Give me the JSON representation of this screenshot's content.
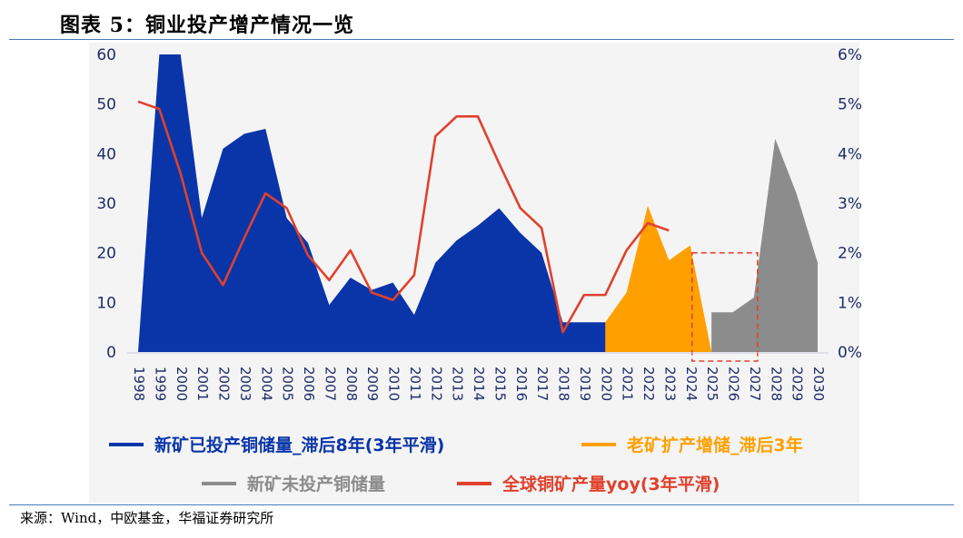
{
  "figure_title": "图表 5：铜业投产增产情况一览",
  "source_note": "来源：Wind，中欧基金，华福证券研究所",
  "colors": {
    "new_mine_invested": "#0a35a8",
    "old_mine_expansion": "#ffa000",
    "new_mine_not_invested": "#8c8c8c",
    "global_yoy": "#e0412d",
    "axis_text": "#1f2c69"
  },
  "chart_data": {
    "type": "area",
    "categories": [
      "1998",
      "1999",
      "2000",
      "2001",
      "2002",
      "2003",
      "2004",
      "2005",
      "2006",
      "2007",
      "2008",
      "2009",
      "2010",
      "2011",
      "2012",
      "2013",
      "2014",
      "2015",
      "2016",
      "2017",
      "2018",
      "2019",
      "2020",
      "2021",
      "2022",
      "2023",
      "2024",
      "2025",
      "2026",
      "2027",
      "2028",
      "2029",
      "2030"
    ],
    "y_left": {
      "ticks": [
        "0",
        "10",
        "20",
        "30",
        "40",
        "50",
        "60"
      ],
      "ylim": [
        0,
        60
      ]
    },
    "y_right": {
      "ticks": [
        "0%",
        "1%",
        "2%",
        "3%",
        "4%",
        "5%",
        "6%"
      ],
      "ylim": [
        0,
        6
      ]
    },
    "series": [
      {
        "name": "新矿已投产铜储量_滞后8年(3年平滑)",
        "kind": "area",
        "axis": "left",
        "values": [
          0,
          60,
          60,
          27,
          41,
          44,
          45,
          27,
          22,
          9.5,
          15,
          12.5,
          14,
          7.5,
          18,
          22.5,
          25.5,
          29,
          24,
          20,
          6,
          6,
          6,
          6,
          6,
          6,
          0,
          null,
          null,
          null,
          null,
          null,
          null
        ]
      },
      {
        "name": "老矿扩产增储_滞后3年",
        "kind": "area",
        "axis": "left",
        "values": [
          null,
          null,
          null,
          null,
          null,
          null,
          null,
          null,
          null,
          null,
          null,
          null,
          null,
          null,
          null,
          null,
          null,
          null,
          null,
          null,
          null,
          null,
          6,
          12,
          29.5,
          18.5,
          21.5,
          0,
          null,
          null,
          null,
          null,
          null
        ]
      },
      {
        "name": "新矿未投产铜储量",
        "kind": "area",
        "axis": "left",
        "values": [
          null,
          null,
          null,
          null,
          null,
          null,
          null,
          null,
          null,
          null,
          null,
          null,
          null,
          null,
          null,
          null,
          null,
          null,
          null,
          null,
          null,
          null,
          null,
          null,
          null,
          null,
          null,
          8,
          8,
          11,
          43,
          32,
          18
        ]
      },
      {
        "name": "全球铜矿产量yoy(3年平滑)",
        "kind": "line",
        "axis": "right",
        "values": [
          5.05,
          4.9,
          3.6,
          2.0,
          1.35,
          2.3,
          3.2,
          2.9,
          1.95,
          1.45,
          2.05,
          1.2,
          1.05,
          1.55,
          4.35,
          4.75,
          4.75,
          3.8,
          2.9,
          2.5,
          0.4,
          1.15,
          1.15,
          2.05,
          2.6,
          2.45,
          null,
          null,
          null,
          null,
          null,
          null,
          null
        ]
      }
    ],
    "annotations": [
      {
        "kind": "dashed-box",
        "color": "#e0412d",
        "x_range": [
          "2024",
          "2027"
        ],
        "y_range": [
          0,
          20
        ]
      }
    ],
    "legend_placement": "bottom"
  }
}
